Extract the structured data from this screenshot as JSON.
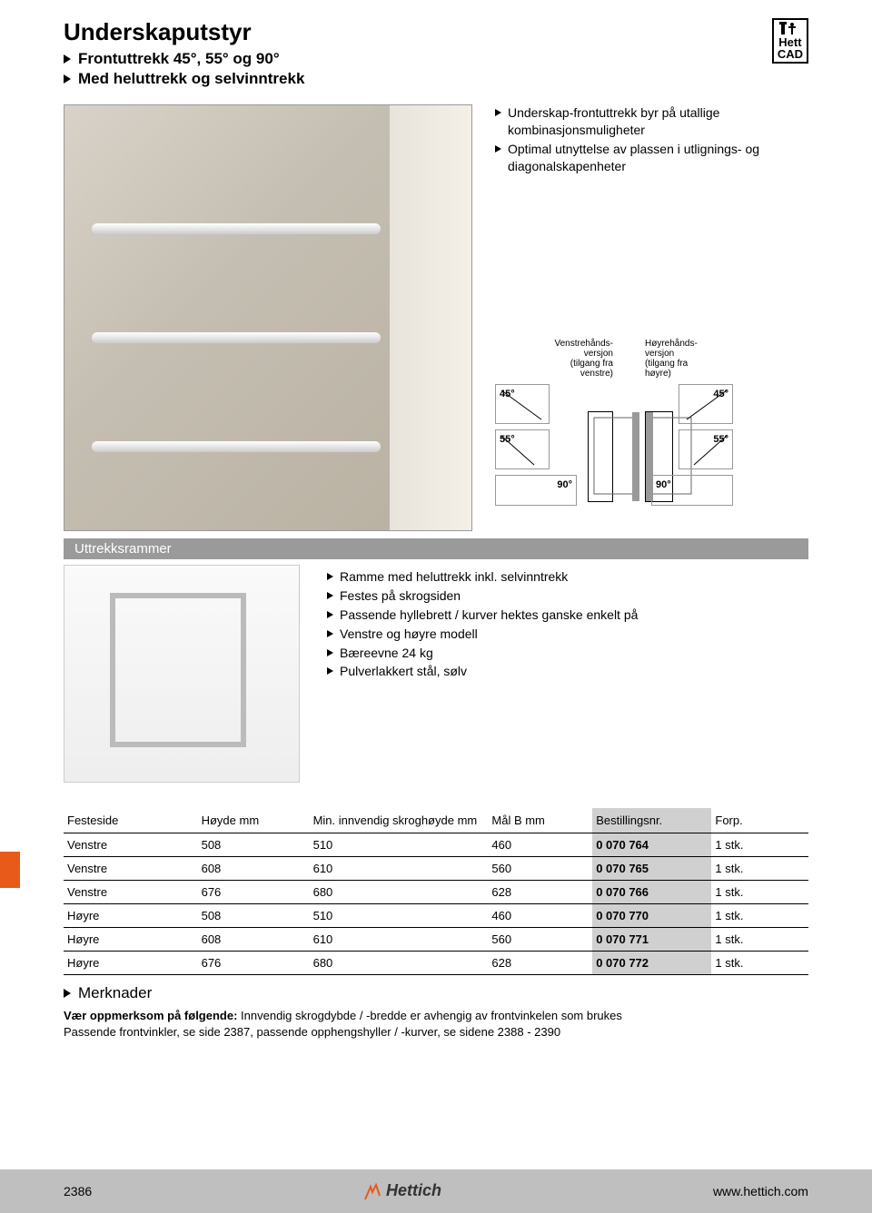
{
  "header": {
    "title": "Underskaputstyr",
    "sub1": "Frontuttrekk 45°, 55° og 90°",
    "sub2": "Med heluttrekk og selvinntrekk",
    "cad_top": "Hett",
    "cad_bottom": "CAD"
  },
  "intro_bullets": [
    "Underskap-frontuttrekk byr på utallige kombinasjonsmuligheter",
    "Optimal utnyttelse av plassen i utlignings- og diagonalskapenheter"
  ],
  "diagram": {
    "left_label": "Venstrehånds-\nversjon\n(tilgang fra\nvenstre)",
    "right_label": "Høyrehånds-\nversjon\n(tilgang fra\nhøyre)",
    "angles": [
      "45°",
      "55°",
      "90°"
    ]
  },
  "section_title": "Uttrekksrammer",
  "frame_bullets": [
    "Ramme med heluttrekk inkl. selvinntrekk",
    "Festes på skrogsiden",
    "Passende hyllebrett / kurver hektes ganske enkelt på",
    "Venstre og høyre modell",
    "Bæreevne 24 kg",
    "Pulverlakkert stål, sølv"
  ],
  "table": {
    "columns": [
      "Festeside",
      "Høyde mm",
      "Min. innvendig skroghøyde mm",
      "Mål B mm",
      "Bestillingsnr.",
      "Forp."
    ],
    "rows": [
      [
        "Venstre",
        "508",
        "510",
        "460",
        "0 070 764",
        "1 stk."
      ],
      [
        "Venstre",
        "608",
        "610",
        "560",
        "0 070 765",
        "1 stk."
      ],
      [
        "Venstre",
        "676",
        "680",
        "628",
        "0 070 766",
        "1 stk."
      ],
      [
        "Høyre",
        "508",
        "510",
        "460",
        "0 070 770",
        "1 stk."
      ],
      [
        "Høyre",
        "608",
        "610",
        "560",
        "0 070 771",
        "1 stk."
      ],
      [
        "Høyre",
        "676",
        "680",
        "628",
        "0 070 772",
        "1 stk."
      ]
    ],
    "highlight_col": 4,
    "col_widths": [
      "18%",
      "15%",
      "24%",
      "14%",
      "16%",
      "13%"
    ]
  },
  "notes": {
    "heading": "Merknader",
    "line1_bold": "Vær oppmerksom på følgende:",
    "line1_rest": " Innvendig skrogdybde / -bredde er avhengig av frontvinkelen som brukes",
    "line2": "Passende frontvinkler, se side 2387, passende opphengshyller / -kurver, se sidene 2388 - 2390"
  },
  "footer": {
    "page": "2386",
    "url": "www.hettich.com",
    "logo": "Hettich"
  },
  "colors": {
    "section_bar": "#9a9a9a",
    "highlight": "#d0d0d0",
    "accent": "#e85a1a",
    "footer_bg": "#bfbfbf"
  }
}
